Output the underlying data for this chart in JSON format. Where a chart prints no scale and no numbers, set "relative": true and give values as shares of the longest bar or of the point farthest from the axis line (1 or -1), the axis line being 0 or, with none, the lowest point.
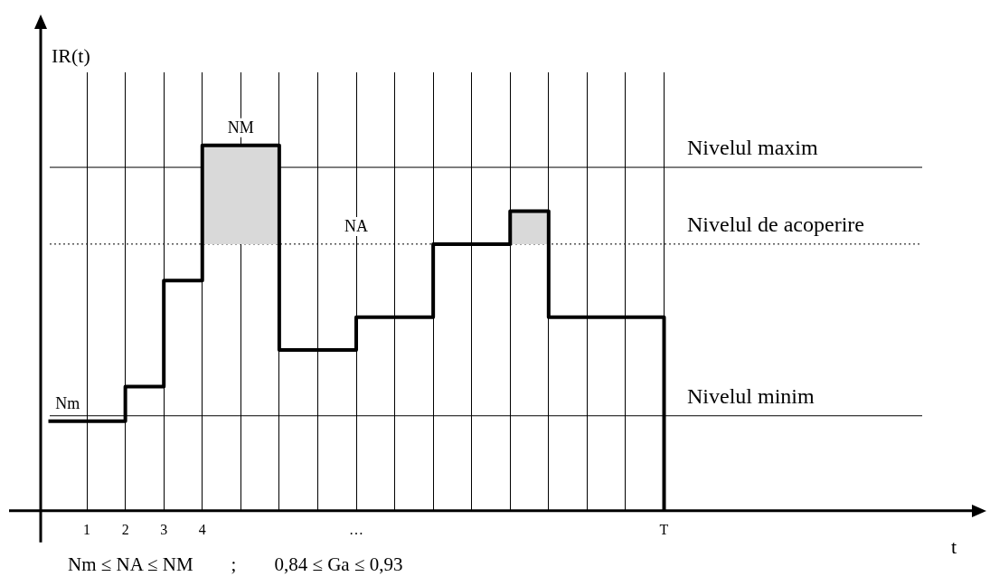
{
  "chart_data": {
    "type": "step",
    "relative": true,
    "xlabel": "t",
    "ylabel": "IR(t)",
    "xlim": [
      -0.2,
      24
    ],
    "xticks": [
      1,
      2,
      3,
      4,
      {
        "value": 5,
        "label": null
      },
      {
        "value": 6,
        "label": null
      },
      {
        "value": 7,
        "label": null
      },
      {
        "value": 8,
        "label": "…"
      },
      {
        "value": 9,
        "label": null
      },
      {
        "value": 10,
        "label": null
      },
      {
        "value": 11,
        "label": null
      },
      {
        "value": 12,
        "label": null
      },
      {
        "value": 13,
        "label": null
      },
      {
        "value": 14,
        "label": null
      },
      {
        "value": 15,
        "label": null
      },
      {
        "value": 16,
        "label": "T"
      }
    ],
    "grid": "x",
    "legend": false,
    "tick_labels": "x",
    "marker": "none",
    "line_style": "solid",
    "series": [
      {
        "type": "area",
        "color": "#d9d9d9",
        "x": [
          4,
          6,
          9,
          12,
          13
        ],
        "values": [
          1,
          1,
          null,
          0.82,
          0.82
        ]
      },
      {
        "color": "#000000",
        "x": [
          0,
          2,
          3,
          4,
          6,
          8,
          10,
          12,
          13,
          16
        ],
        "values": [
          0.245,
          0.34,
          0.63,
          1,
          0.44,
          0.53,
          0.73,
          0.82,
          0.53,
          0
        ]
      }
    ],
    "ref_lines": [
      {
        "axis": "y",
        "value": 0.94,
        "label": "Nivelul maxim",
        "color": "#000000",
        "line_style": "solid"
      },
      {
        "axis": "y",
        "value": 0.73,
        "label": "Nivelul de acoperire",
        "color": "#000000",
        "line_style": "dotted"
      },
      {
        "axis": "y",
        "value": 0.26,
        "label": "Nivelul minim",
        "color": "#000000",
        "line_style": "solid"
      }
    ],
    "annotations": [
      {
        "text": "NM",
        "x": 5,
        "y": 1
      },
      {
        "text": "NA",
        "x": 8,
        "y": 0.73
      },
      {
        "text": "Nm",
        "x": 0.5,
        "y": 0.245
      },
      "Nm ≤ NA ≤ NM        ;        0,84 ≤ Ga ≤ 0,93"
    ]
  }
}
